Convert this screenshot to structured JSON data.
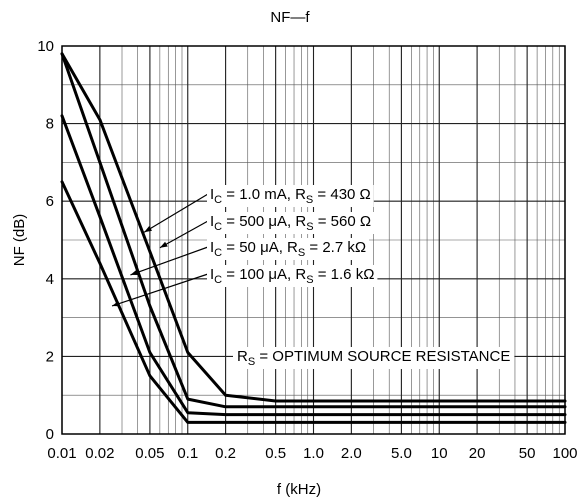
{
  "chart_data": {
    "type": "line",
    "title": "NF—f",
    "xlabel": "f (kHz)",
    "ylabel": "NF (dB)",
    "x_scale": "log",
    "xlim": [
      0.01,
      100
    ],
    "ylim": [
      0,
      10
    ],
    "grid": true,
    "x_ticks": [
      0.01,
      0.02,
      0.05,
      0.1,
      0.2,
      0.5,
      1.0,
      2.0,
      5.0,
      10,
      20,
      50,
      100
    ],
    "x_tick_labels": [
      "0.01",
      "0.02",
      "0.05",
      "0.1",
      "0.2",
      "0.5",
      "1.0",
      "2.0",
      "5.0",
      "10",
      "20",
      "50",
      "100"
    ],
    "y_ticks": [
      0,
      2,
      4,
      6,
      8,
      10
    ],
    "y_tick_labels": [
      "0",
      "2",
      "4",
      "6",
      "8",
      "10"
    ],
    "series": [
      {
        "annotation": {
          "pre": "I",
          "sub1": "C",
          "mid": " = 1.0 mA, R",
          "sub2": "S",
          "post": " = 430 Ω"
        },
        "x": [
          0.01,
          0.02,
          0.05,
          0.1,
          0.2,
          0.5,
          1,
          2,
          5,
          10,
          20,
          50,
          100
        ],
        "y": [
          9.8,
          8.1,
          4.7,
          2.1,
          1.0,
          0.85,
          0.85,
          0.85,
          0.85,
          0.85,
          0.85,
          0.85,
          0.85
        ]
      },
      {
        "annotation": {
          "pre": "I",
          "sub1": "C",
          "mid": " = 500 μA, R",
          "sub2": "S",
          "post": " = 560 Ω"
        },
        "x": [
          0.01,
          0.02,
          0.05,
          0.1,
          0.2,
          0.5,
          1,
          2,
          5,
          10,
          20,
          50,
          100
        ],
        "y": [
          9.8,
          7.0,
          3.3,
          0.9,
          0.7,
          0.7,
          0.7,
          0.7,
          0.7,
          0.7,
          0.7,
          0.7,
          0.7
        ]
      },
      {
        "annotation": {
          "pre": "I",
          "sub1": "C",
          "mid": " = 50 μA, R",
          "sub2": "S",
          "post": " = 2.7 kΩ"
        },
        "x": [
          0.01,
          0.02,
          0.05,
          0.1,
          0.2,
          0.5,
          1,
          2,
          5,
          10,
          20,
          50,
          100
        ],
        "y": [
          8.2,
          5.6,
          2.1,
          0.55,
          0.5,
          0.5,
          0.5,
          0.5,
          0.5,
          0.5,
          0.5,
          0.5,
          0.5
        ]
      },
      {
        "annotation": {
          "pre": "I",
          "sub1": "C",
          "mid": " = 100 μA, R",
          "sub2": "S",
          "post": " = 1.6 kΩ"
        },
        "x": [
          0.01,
          0.02,
          0.05,
          0.1,
          0.2,
          0.5,
          1,
          2,
          5,
          10,
          20,
          50,
          100
        ],
        "y": [
          6.5,
          4.4,
          1.5,
          0.3,
          0.3,
          0.3,
          0.3,
          0.3,
          0.3,
          0.3,
          0.3,
          0.3,
          0.3
        ]
      }
    ],
    "note": {
      "pre": "R",
      "sub": "S",
      "post": " = OPTIMUM SOURCE RESISTANCE"
    }
  }
}
